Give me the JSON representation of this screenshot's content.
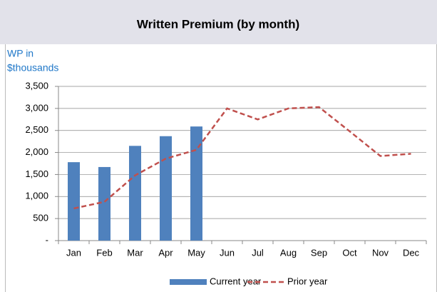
{
  "chart_data": {
    "type": "bar_line",
    "title": "Written Premium (by month)",
    "ylabel": [
      "WP in",
      "$thousands"
    ],
    "categories": [
      "Jan",
      "Feb",
      "Mar",
      "Apr",
      "May",
      "Jun",
      "Jul",
      "Aug",
      "Sep",
      "Oct",
      "Nov",
      "Dec"
    ],
    "series": [
      {
        "name": "Current year",
        "type": "bar",
        "color": "#4f81bd",
        "values": [
          1780,
          1670,
          2150,
          2370,
          2590,
          null,
          null,
          null,
          null,
          null,
          null,
          null
        ]
      },
      {
        "name": "Prior year",
        "type": "line",
        "color": "#c0504d",
        "values": [
          730,
          880,
          1480,
          1860,
          2060,
          3000,
          2750,
          3000,
          3030,
          2480,
          1920,
          1970
        ]
      }
    ],
    "ylim": [
      0,
      3500
    ],
    "yticks": [
      {
        "value": 0,
        "label": "-"
      },
      500,
      {
        "value": 1000,
        "label": "1,000"
      },
      {
        "value": 1500,
        "label": "1,500"
      },
      {
        "value": 2000,
        "label": "2,000"
      },
      {
        "value": 2500,
        "label": "2,500"
      },
      {
        "value": 3000,
        "label": "3,000"
      },
      {
        "value": 3500,
        "label": "3,500"
      }
    ],
    "grid": true,
    "legend": "bottom"
  }
}
